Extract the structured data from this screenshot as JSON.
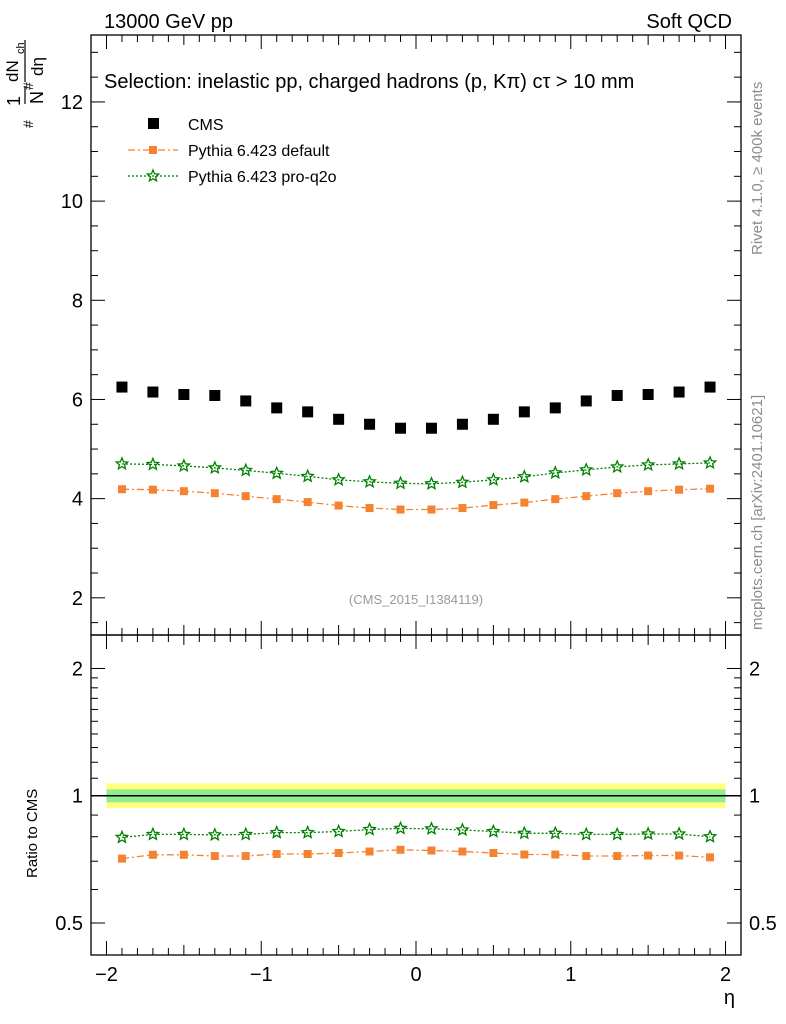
{
  "header": {
    "energy_label": "13000 GeV pp",
    "category_label": "Soft QCD",
    "selection": "Selection: inelastic pp, charged hadrons (p, Kπ) cτ > 10 mm",
    "analysis_id": "(CMS_2015_I1384119)",
    "side_rivet": "Rivet 4.1.0, ≥ 400k events",
    "side_mcplots": "mcplots.cern.ch [arXiv:2401.10621]"
  },
  "chart_data": [
    {
      "type": "scatter",
      "panel": "main",
      "ylabel": "1/N dN_ch/dη",
      "ylabel_parts": {
        "one": "1",
        "n": "N",
        "dn": "dN",
        "ch": "ch",
        "deta": "dη",
        "hash": "#"
      },
      "xlim": [
        -2.1,
        2.1
      ],
      "ylim": [
        1.25,
        13.35
      ],
      "yticks": [
        2,
        4,
        6,
        8,
        10,
        12
      ],
      "grid": false,
      "legend_position": "top-left",
      "x": [
        -1.9,
        -1.7,
        -1.5,
        -1.3,
        -1.1,
        -0.9,
        -0.7,
        -0.5,
        -0.3,
        -0.1,
        0.1,
        0.3,
        0.5,
        0.7,
        0.9,
        1.1,
        1.3,
        1.5,
        1.7,
        1.9
      ],
      "series": [
        {
          "name": "CMS",
          "color": "#000000",
          "marker": "square",
          "values": [
            6.25,
            6.15,
            6.1,
            6.08,
            5.97,
            5.83,
            5.75,
            5.6,
            5.5,
            5.42,
            5.42,
            5.5,
            5.6,
            5.75,
            5.83,
            5.97,
            6.08,
            6.1,
            6.15,
            6.25
          ]
        },
        {
          "name": "Pythia 6.423 default",
          "color": "#f58231",
          "marker": "square",
          "line": "dashdot",
          "values": [
            4.19,
            4.18,
            4.15,
            4.11,
            4.05,
            3.99,
            3.93,
            3.86,
            3.81,
            3.78,
            3.78,
            3.81,
            3.87,
            3.92,
            3.99,
            4.05,
            4.11,
            4.15,
            4.18,
            4.2
          ]
        },
        {
          "name": "Pythia 6.423 pro-q2o",
          "color": "#008000",
          "marker": "star",
          "line": "dotted",
          "values": [
            4.7,
            4.69,
            4.66,
            4.62,
            4.57,
            4.51,
            4.45,
            4.38,
            4.34,
            4.31,
            4.3,
            4.33,
            4.38,
            4.44,
            4.52,
            4.58,
            4.64,
            4.68,
            4.7,
            4.72
          ]
        }
      ]
    },
    {
      "type": "scatter",
      "panel": "ratio",
      "ylabel": "Ratio to CMS",
      "xlabel": "η",
      "xlim": [
        -2.1,
        2.1
      ],
      "ylim": [
        0.42,
        2.4
      ],
      "yscale": "log",
      "yticks": [
        0.5,
        1,
        2
      ],
      "xticks": [
        -2,
        -1,
        0,
        1,
        2
      ],
      "xtick_labels": [
        "−2",
        "−1",
        "0",
        "1",
        "2"
      ],
      "ytick_labels": [
        "0.5",
        "1",
        "2"
      ],
      "band": {
        "inner": [
          0.965,
          1.035
        ],
        "outer": [
          0.935,
          1.07
        ],
        "inner_color": "#90ee90",
        "outer_color": "#ffff80"
      },
      "series": [
        {
          "name": "Pythia 6.423 default",
          "color": "#f58231",
          "marker": "square",
          "values": [
            0.71,
            0.725,
            0.725,
            0.72,
            0.72,
            0.728,
            0.728,
            0.732,
            0.738,
            0.745,
            0.742,
            0.738,
            0.732,
            0.726,
            0.726,
            0.72,
            0.72,
            0.722,
            0.722,
            0.715
          ]
        },
        {
          "name": "Pythia 6.423 pro-q2o",
          "color": "#008000",
          "marker": "star",
          "values": [
            0.797,
            0.81,
            0.81,
            0.808,
            0.81,
            0.818,
            0.818,
            0.823,
            0.832,
            0.837,
            0.835,
            0.83,
            0.823,
            0.815,
            0.815,
            0.81,
            0.81,
            0.812,
            0.812,
            0.8
          ]
        }
      ]
    }
  ]
}
